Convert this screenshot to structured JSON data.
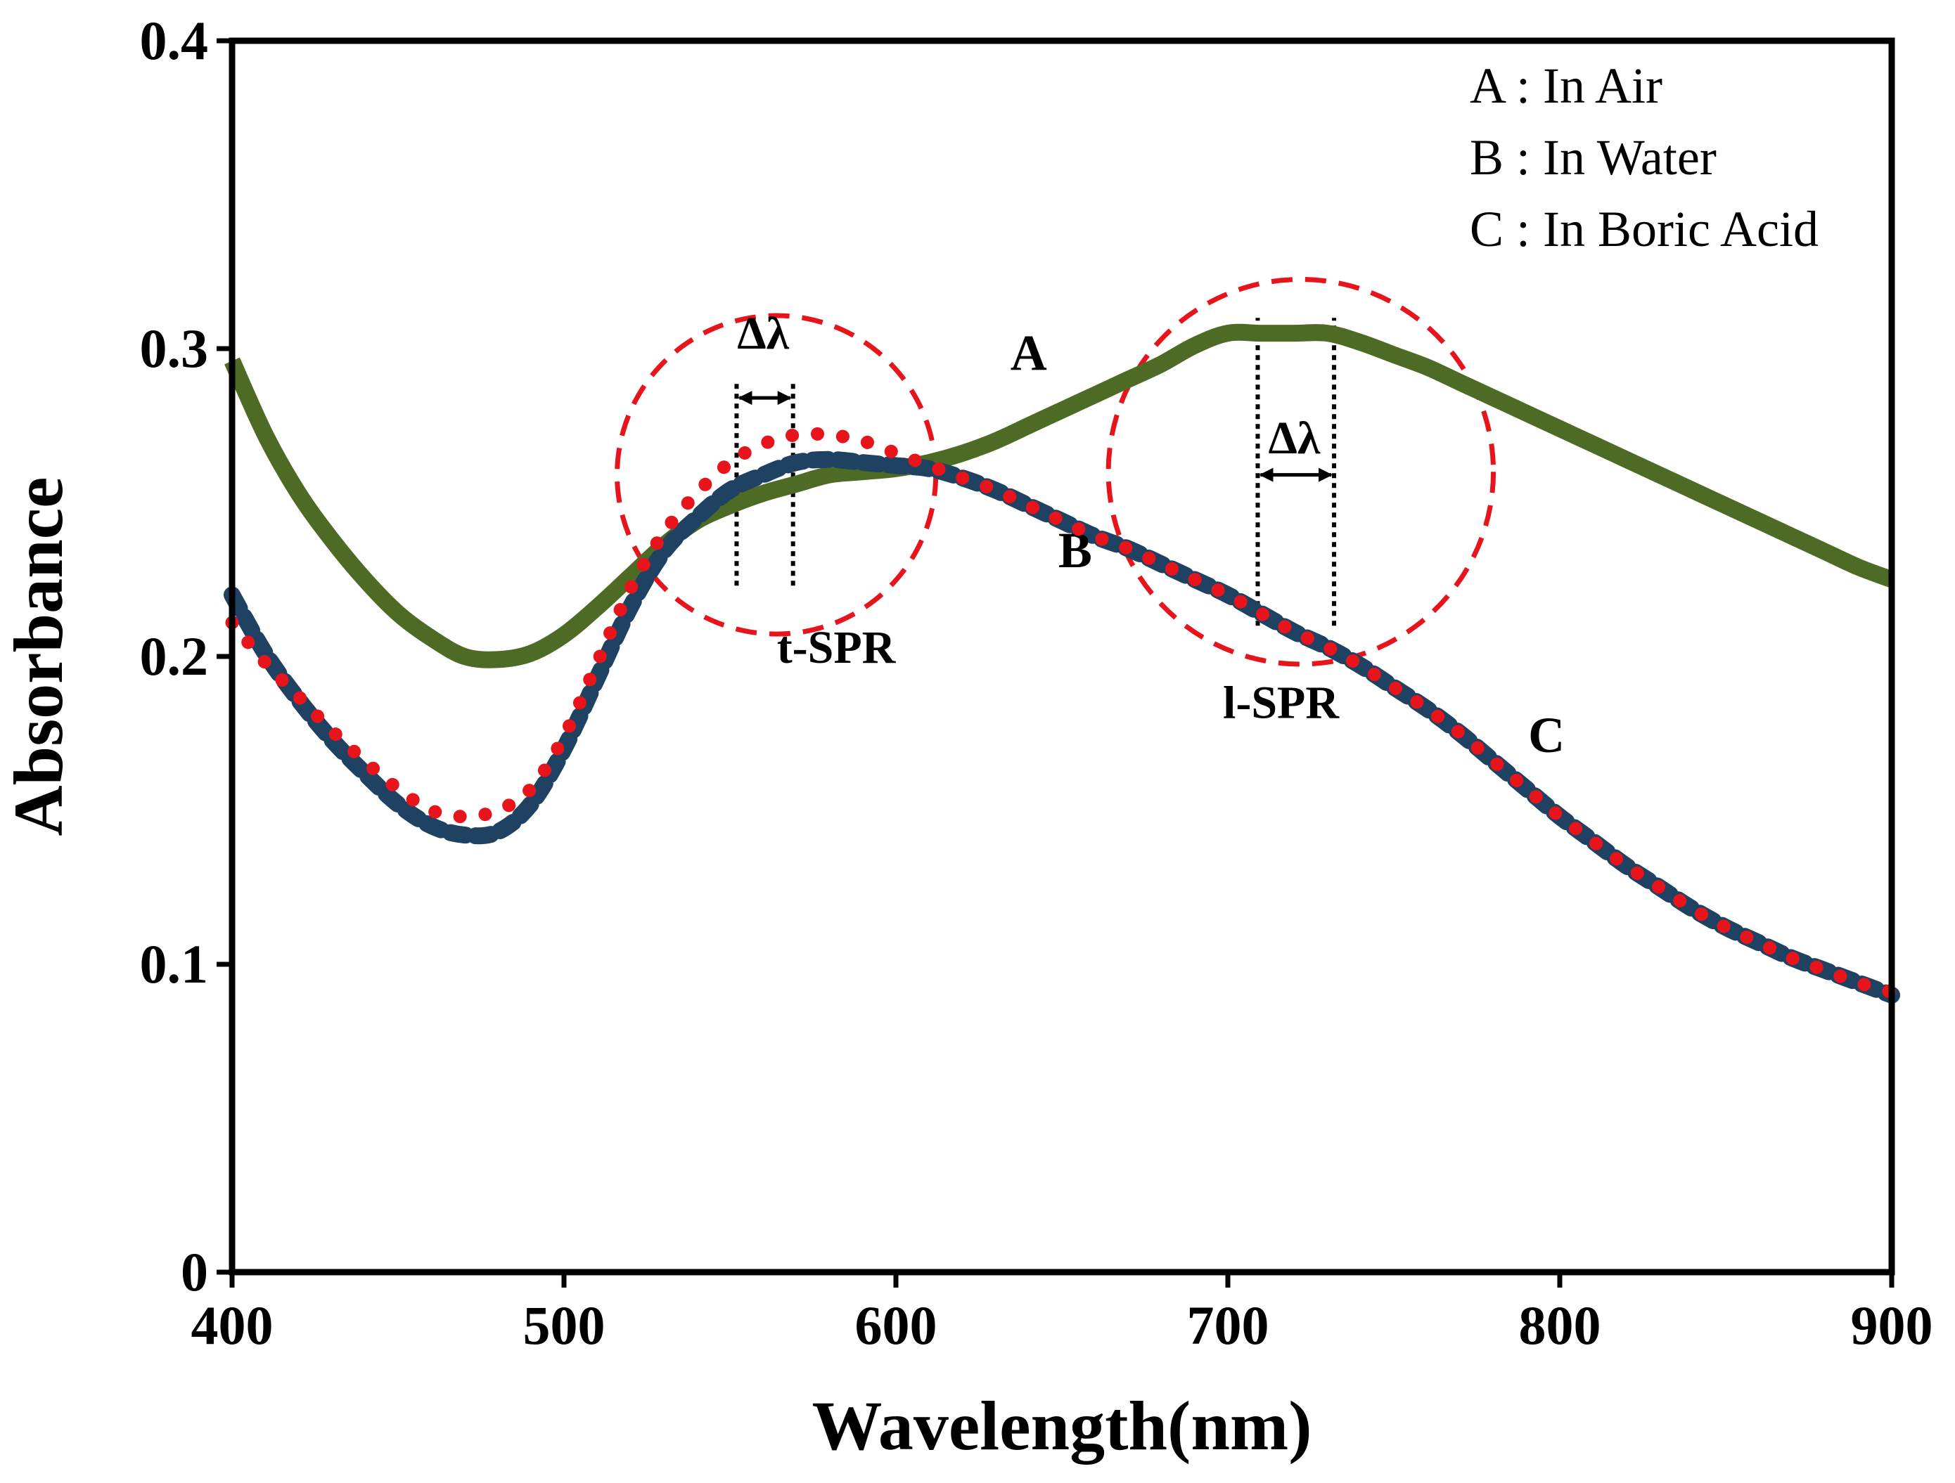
{
  "chart_data": {
    "type": "line",
    "xlabel": "Wavelength(nm)",
    "ylabel": "Absorbance",
    "xlim": [
      400,
      900
    ],
    "ylim": [
      0,
      0.4
    ],
    "xticks": [
      {
        "value": 400,
        "label": "400"
      },
      {
        "value": 500,
        "label": "500"
      },
      {
        "value": 600,
        "label": "600"
      },
      {
        "value": 700,
        "label": "700"
      },
      {
        "value": 800,
        "label": "800"
      },
      {
        "value": 900,
        "label": "900"
      }
    ],
    "yticks": [
      {
        "value": 0,
        "label": "0"
      },
      {
        "value": 0.1,
        "label": "0.1"
      },
      {
        "value": 0.2,
        "label": "0.2"
      },
      {
        "value": 0.3,
        "label": "0.3"
      },
      {
        "value": 0.4,
        "label": "0.4"
      }
    ],
    "legend_position": "top-right",
    "legend": [
      "A : In Air",
      "B : In Water",
      "C : In Boric Acid"
    ],
    "series": [
      {
        "key": "A",
        "name": "In Air",
        "color": "#4e6b26",
        "style": "solid",
        "label": "A",
        "label_at": [
          640,
          0.293
        ],
        "points": [
          [
            400,
            0.296
          ],
          [
            410,
            0.272
          ],
          [
            420,
            0.253
          ],
          [
            430,
            0.238
          ],
          [
            440,
            0.225
          ],
          [
            450,
            0.214
          ],
          [
            460,
            0.206
          ],
          [
            470,
            0.2
          ],
          [
            480,
            0.199
          ],
          [
            490,
            0.201
          ],
          [
            500,
            0.207
          ],
          [
            510,
            0.216
          ],
          [
            520,
            0.226
          ],
          [
            530,
            0.236
          ],
          [
            540,
            0.244
          ],
          [
            550,
            0.249
          ],
          [
            560,
            0.253
          ],
          [
            570,
            0.256
          ],
          [
            580,
            0.259
          ],
          [
            590,
            0.26
          ],
          [
            600,
            0.261
          ],
          [
            610,
            0.263
          ],
          [
            620,
            0.266
          ],
          [
            630,
            0.27
          ],
          [
            640,
            0.275
          ],
          [
            650,
            0.28
          ],
          [
            660,
            0.285
          ],
          [
            670,
            0.29
          ],
          [
            680,
            0.295
          ],
          [
            690,
            0.301
          ],
          [
            700,
            0.305
          ],
          [
            710,
            0.305
          ],
          [
            720,
            0.305
          ],
          [
            730,
            0.305
          ],
          [
            740,
            0.302
          ],
          [
            750,
            0.298
          ],
          [
            760,
            0.294
          ],
          [
            770,
            0.289
          ],
          [
            780,
            0.284
          ],
          [
            790,
            0.279
          ],
          [
            800,
            0.274
          ],
          [
            810,
            0.269
          ],
          [
            820,
            0.264
          ],
          [
            830,
            0.259
          ],
          [
            840,
            0.254
          ],
          [
            850,
            0.249
          ],
          [
            860,
            0.244
          ],
          [
            870,
            0.239
          ],
          [
            880,
            0.234
          ],
          [
            890,
            0.229
          ],
          [
            900,
            0.225
          ]
        ]
      },
      {
        "key": "B",
        "name": "In Water",
        "color": "#1f4263",
        "style": "dashed",
        "label": "B",
        "label_at": [
          654,
          0.229
        ],
        "points": [
          [
            400,
            0.22
          ],
          [
            410,
            0.201
          ],
          [
            420,
            0.186
          ],
          [
            430,
            0.173
          ],
          [
            440,
            0.162
          ],
          [
            450,
            0.152
          ],
          [
            460,
            0.145
          ],
          [
            470,
            0.142
          ],
          [
            480,
            0.143
          ],
          [
            490,
            0.152
          ],
          [
            500,
            0.17
          ],
          [
            510,
            0.193
          ],
          [
            520,
            0.216
          ],
          [
            530,
            0.234
          ],
          [
            540,
            0.245
          ],
          [
            550,
            0.254
          ],
          [
            560,
            0.259
          ],
          [
            570,
            0.263
          ],
          [
            580,
            0.264
          ],
          [
            590,
            0.263
          ],
          [
            600,
            0.262
          ],
          [
            610,
            0.261
          ],
          [
            620,
            0.258
          ],
          [
            630,
            0.254
          ],
          [
            640,
            0.249
          ],
          [
            650,
            0.244
          ],
          [
            660,
            0.239
          ],
          [
            670,
            0.235
          ],
          [
            680,
            0.23
          ],
          [
            690,
            0.225
          ],
          [
            700,
            0.22
          ],
          [
            710,
            0.214
          ],
          [
            720,
            0.208
          ],
          [
            730,
            0.203
          ],
          [
            740,
            0.197
          ],
          [
            750,
            0.19
          ],
          [
            760,
            0.183
          ],
          [
            770,
            0.175
          ],
          [
            780,
            0.166
          ],
          [
            790,
            0.157
          ],
          [
            800,
            0.148
          ],
          [
            810,
            0.14
          ],
          [
            820,
            0.132
          ],
          [
            830,
            0.125
          ],
          [
            840,
            0.118
          ],
          [
            850,
            0.112
          ],
          [
            860,
            0.107
          ],
          [
            870,
            0.102
          ],
          [
            880,
            0.098
          ],
          [
            890,
            0.094
          ],
          [
            900,
            0.09
          ]
        ]
      },
      {
        "key": "C",
        "name": "In Boric Acid",
        "color": "#e8141c",
        "style": "dotted",
        "label": "C",
        "label_at": [
          796,
          0.169
        ],
        "points": [
          [
            400,
            0.211
          ],
          [
            410,
            0.198
          ],
          [
            420,
            0.187
          ],
          [
            430,
            0.176
          ],
          [
            440,
            0.166
          ],
          [
            450,
            0.157
          ],
          [
            460,
            0.15
          ],
          [
            470,
            0.148
          ],
          [
            480,
            0.15
          ],
          [
            490,
            0.157
          ],
          [
            500,
            0.174
          ],
          [
            510,
            0.198
          ],
          [
            520,
            0.222
          ],
          [
            530,
            0.24
          ],
          [
            540,
            0.253
          ],
          [
            550,
            0.263
          ],
          [
            560,
            0.269
          ],
          [
            570,
            0.272
          ],
          [
            580,
            0.272
          ],
          [
            590,
            0.27
          ],
          [
            600,
            0.266
          ],
          [
            610,
            0.262
          ],
          [
            620,
            0.258
          ],
          [
            630,
            0.254
          ],
          [
            640,
            0.249
          ],
          [
            650,
            0.244
          ],
          [
            660,
            0.239
          ],
          [
            670,
            0.235
          ],
          [
            680,
            0.23
          ],
          [
            690,
            0.225
          ],
          [
            700,
            0.22
          ],
          [
            710,
            0.214
          ],
          [
            720,
            0.208
          ],
          [
            730,
            0.203
          ],
          [
            740,
            0.197
          ],
          [
            750,
            0.19
          ],
          [
            760,
            0.183
          ],
          [
            770,
            0.175
          ],
          [
            780,
            0.166
          ],
          [
            790,
            0.157
          ],
          [
            800,
            0.148
          ],
          [
            810,
            0.14
          ],
          [
            820,
            0.132
          ],
          [
            830,
            0.125
          ],
          [
            840,
            0.118
          ],
          [
            850,
            0.112
          ],
          [
            860,
            0.107
          ],
          [
            870,
            0.102
          ],
          [
            880,
            0.098
          ],
          [
            890,
            0.094
          ],
          [
            900,
            0.091
          ]
        ]
      }
    ],
    "annotations": [
      {
        "name": "t-SPR",
        "label": "t-SPR",
        "label_at": [
          582,
          0.198
        ],
        "circle_center": [
          564,
          0.259
        ],
        "circle_radius_nm": 48,
        "dotted_lines_x": [
          552,
          569
        ],
        "dotted_y_range": [
          0.223,
          0.29
        ],
        "shift_label": "Δλ",
        "shift_label_at": [
          560,
          0.3
        ],
        "arrow_y": 0.284
      },
      {
        "name": "l-SPR",
        "label": "l-SPR",
        "label_at": [
          716,
          0.18
        ],
        "circle_center": [
          722,
          0.26
        ],
        "circle_radius_nm": 58,
        "dotted_lines_x": [
          709,
          732
        ],
        "dotted_y_range": [
          0.21,
          0.31
        ],
        "shift_label": "Δλ",
        "shift_label_at": [
          720,
          0.266
        ],
        "arrow_y": 0.259
      }
    ]
  }
}
